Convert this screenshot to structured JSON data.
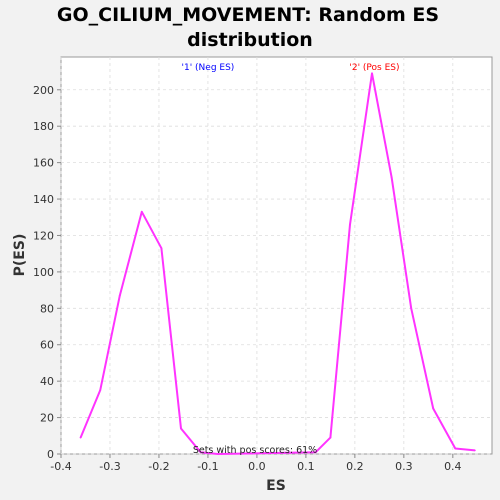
{
  "chart_data": {
    "type": "line",
    "title": "GO_CILIUM_MOVEMENT: Random ES distribution",
    "title_lines": [
      "GO_CILIUM_MOVEMENT: Random ES",
      "distribution"
    ],
    "xlabel": "ES",
    "ylabel": "P(ES)",
    "xlim": [
      -0.4,
      0.48
    ],
    "ylim": [
      0,
      218
    ],
    "x_ticks": [
      -0.4,
      -0.3,
      -0.2,
      -0.1,
      0.0,
      0.1,
      0.2,
      0.3,
      0.4
    ],
    "x_tick_labels": [
      "-0.4",
      "-0.3",
      "-0.2",
      "-0.1",
      "0.0",
      "0.1",
      "0.2",
      "0.3",
      "0.4"
    ],
    "y_ticks": [
      0,
      20,
      40,
      60,
      80,
      100,
      120,
      140,
      160,
      180,
      200
    ],
    "y_tick_labels": [
      "0",
      "20",
      "40",
      "60",
      "80",
      "100",
      "120",
      "140",
      "160",
      "180",
      "200"
    ],
    "grid": true,
    "legend": [
      {
        "label": "'1' (Neg ES)",
        "color": "#0000ff",
        "x": -0.1
      },
      {
        "label": "'2' (Pos ES)",
        "color": "#ff0000",
        "x": 0.24
      }
    ],
    "annotation": "Sets with pos scores: 61%",
    "series": [
      {
        "color": "#ff33ff",
        "x": [
          -0.36,
          -0.32,
          -0.28,
          -0.235,
          -0.195,
          -0.155,
          -0.115,
          -0.08,
          0.12,
          0.15,
          0.19,
          0.235,
          0.275,
          0.315,
          0.36,
          0.405,
          0.445
        ],
        "y": [
          9,
          35,
          87,
          133,
          113,
          14,
          1,
          0,
          1,
          9,
          126,
          209,
          152,
          80,
          25,
          3,
          2
        ]
      }
    ]
  }
}
